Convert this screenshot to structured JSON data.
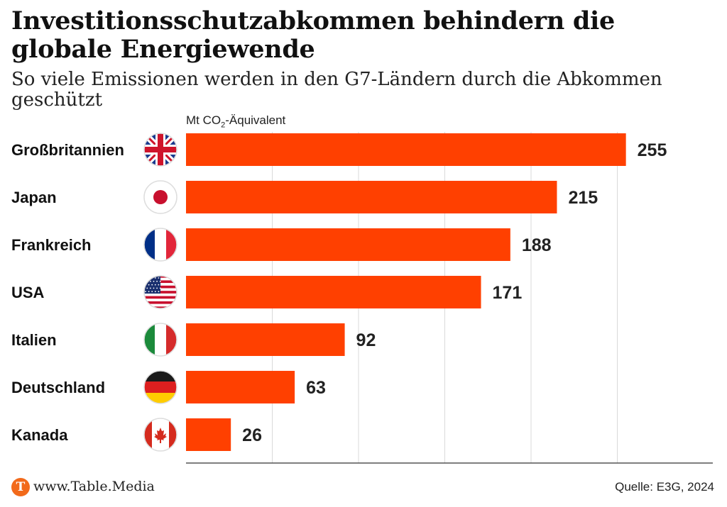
{
  "chart_data": {
    "type": "bar",
    "orientation": "horizontal",
    "title": "Investitionsschutzabkommen behindern die globale Energiewende",
    "subtitle": "So viele Emissionen werden in den G7-Ländern durch die Abkommen geschützt",
    "unit_label": {
      "prefix": "Mt CO",
      "sub": "2",
      "suffix": "-Äquivalent"
    },
    "categories": [
      "Großbritannien",
      "Japan",
      "Frankreich",
      "USA",
      "Italien",
      "Deutschland",
      "Kanada"
    ],
    "values": [
      255,
      215,
      188,
      171,
      92,
      63,
      26
    ],
    "xlim": [
      0,
      300
    ],
    "grid_values": [
      50,
      100,
      150,
      200,
      250
    ],
    "bar_color": "#ff4000",
    "flags": [
      "uk-flag-icon",
      "japan-flag-icon",
      "france-flag-icon",
      "usa-flag-icon",
      "italy-flag-icon",
      "germany-flag-icon",
      "canada-flag-icon"
    ],
    "grid": true
  },
  "footer": {
    "logo_letter": "T",
    "site": "www.Table.Media",
    "source": "Quelle: E3G, 2024"
  }
}
